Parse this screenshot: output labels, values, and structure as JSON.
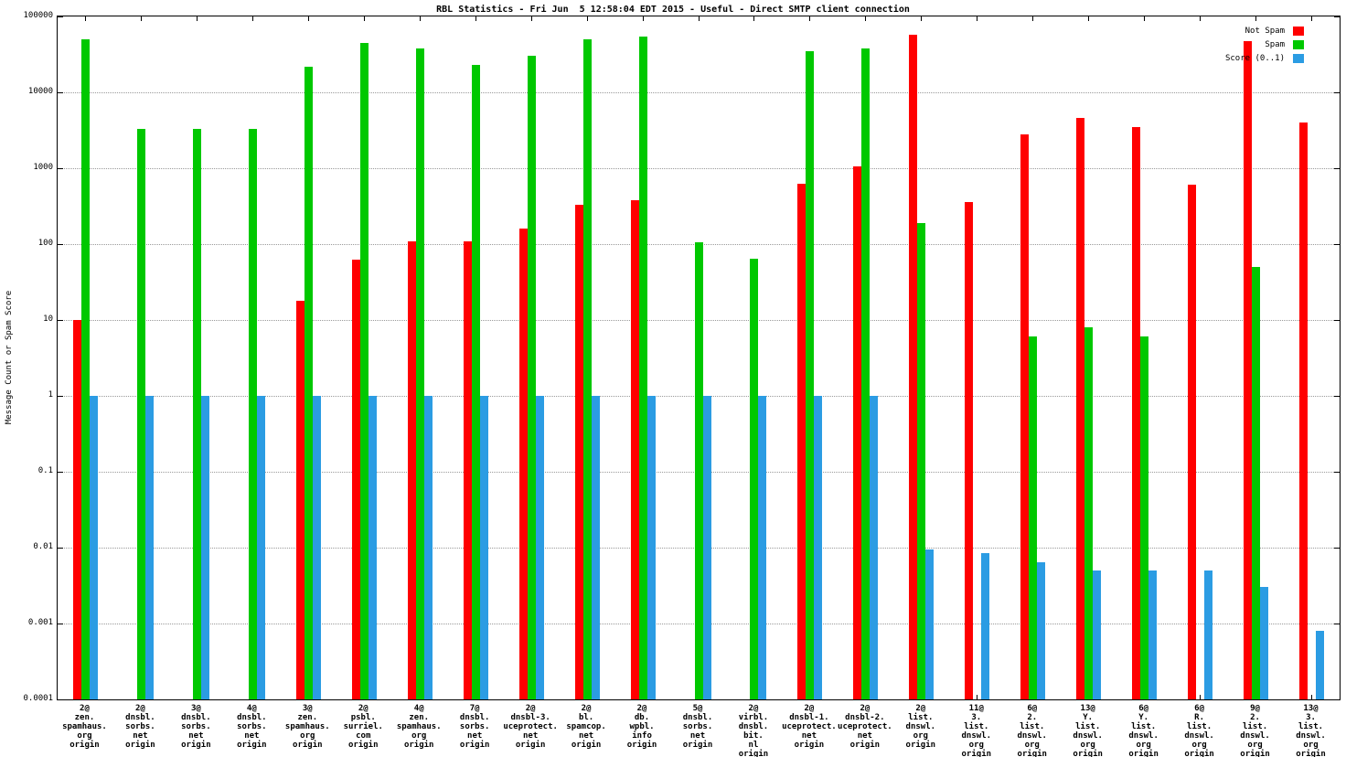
{
  "chart_data": {
    "type": "bar",
    "title": "RBL Statistics - Fri Jun  5 12:58:04 EDT 2015 - Useful - Direct SMTP client connection",
    "ylabel": "Message Count or Spam Score",
    "xlabel": "",
    "y_scale": "log10",
    "ylim": [
      0.0001,
      100000
    ],
    "ytick_labels": [
      "100000",
      "10000",
      "1000",
      "100",
      "10",
      "1",
      "0.1",
      "0.01",
      "0.001",
      "0.0001"
    ],
    "grid": true,
    "legend_position": "top-right-inside",
    "categories": [
      [
        "2@",
        "zen.",
        "spamhaus.",
        "org",
        "origin"
      ],
      [
        "2@",
        "dnsbl.",
        "sorbs.",
        "net",
        "origin"
      ],
      [
        "3@",
        "dnsbl.",
        "sorbs.",
        "net",
        "origin"
      ],
      [
        "4@",
        "dnsbl.",
        "sorbs.",
        "net",
        "origin"
      ],
      [
        "3@",
        "zen.",
        "spamhaus.",
        "org",
        "origin"
      ],
      [
        "2@",
        "psbl.",
        "surriel.",
        "com",
        "origin"
      ],
      [
        "4@",
        "zen.",
        "spamhaus.",
        "org",
        "origin"
      ],
      [
        "7@",
        "dnsbl.",
        "sorbs.",
        "net",
        "origin"
      ],
      [
        "2@",
        "dnsbl-3.",
        "uceprotect.",
        "net",
        "origin"
      ],
      [
        "2@",
        "bl.",
        "spamcop.",
        "net",
        "origin"
      ],
      [
        "2@",
        "db.",
        "wpbl.",
        "info",
        "origin"
      ],
      [
        "5@",
        "dnsbl.",
        "sorbs.",
        "net",
        "origin"
      ],
      [
        "2@",
        "virbl.",
        "dnsbl.",
        "bit.",
        "nl",
        "origin"
      ],
      [
        "2@",
        "dnsbl-1.",
        "uceprotect.",
        "net",
        "origin"
      ],
      [
        "2@",
        "dnsbl-2.",
        "uceprotect.",
        "net",
        "origin"
      ],
      [
        "2@",
        "list.",
        "dnswl.",
        "org",
        "origin"
      ],
      [
        "11@",
        "3.",
        "list.",
        "dnswl.",
        "org",
        "origin"
      ],
      [
        "6@",
        "2.",
        "list.",
        "dnswl.",
        "org",
        "origin"
      ],
      [
        "13@",
        "Y.",
        "list.",
        "dnswl.",
        "org",
        "origin"
      ],
      [
        "6@",
        "Y.",
        "list.",
        "dnswl.",
        "org",
        "origin"
      ],
      [
        "6@",
        "R.",
        "list.",
        "dnswl.",
        "org",
        "origin"
      ],
      [
        "9@",
        "2.",
        "list.",
        "dnswl.",
        "org",
        "origin"
      ],
      [
        "13@",
        "3.",
        "list.",
        "dnswl.",
        "org",
        "origin"
      ]
    ],
    "series": [
      {
        "name": "Not Spam",
        "color": "#ff0000",
        "values": [
          10,
          null,
          null,
          null,
          18,
          62,
          110,
          110,
          160,
          330,
          380,
          null,
          null,
          620,
          1050,
          58000,
          360,
          2800,
          4600,
          3500,
          600,
          47000,
          4000
        ]
      },
      {
        "name": "Spam",
        "color": "#00c800",
        "values": [
          50000,
          3300,
          3300,
          3300,
          22000,
          45000,
          38000,
          23000,
          30000,
          50000,
          55000,
          105,
          65,
          35000,
          38000,
          190,
          null,
          6,
          8,
          6,
          null,
          50,
          null
        ]
      },
      {
        "name": "Score (0..1)",
        "color": "#2b9ce3",
        "values": [
          1,
          1,
          1,
          1,
          1,
          1,
          1,
          1,
          1,
          1,
          1,
          1,
          1,
          1,
          1,
          0.0095,
          0.0085,
          0.0065,
          0.005,
          0.005,
          0.005,
          0.003,
          0.0008
        ]
      }
    ]
  }
}
